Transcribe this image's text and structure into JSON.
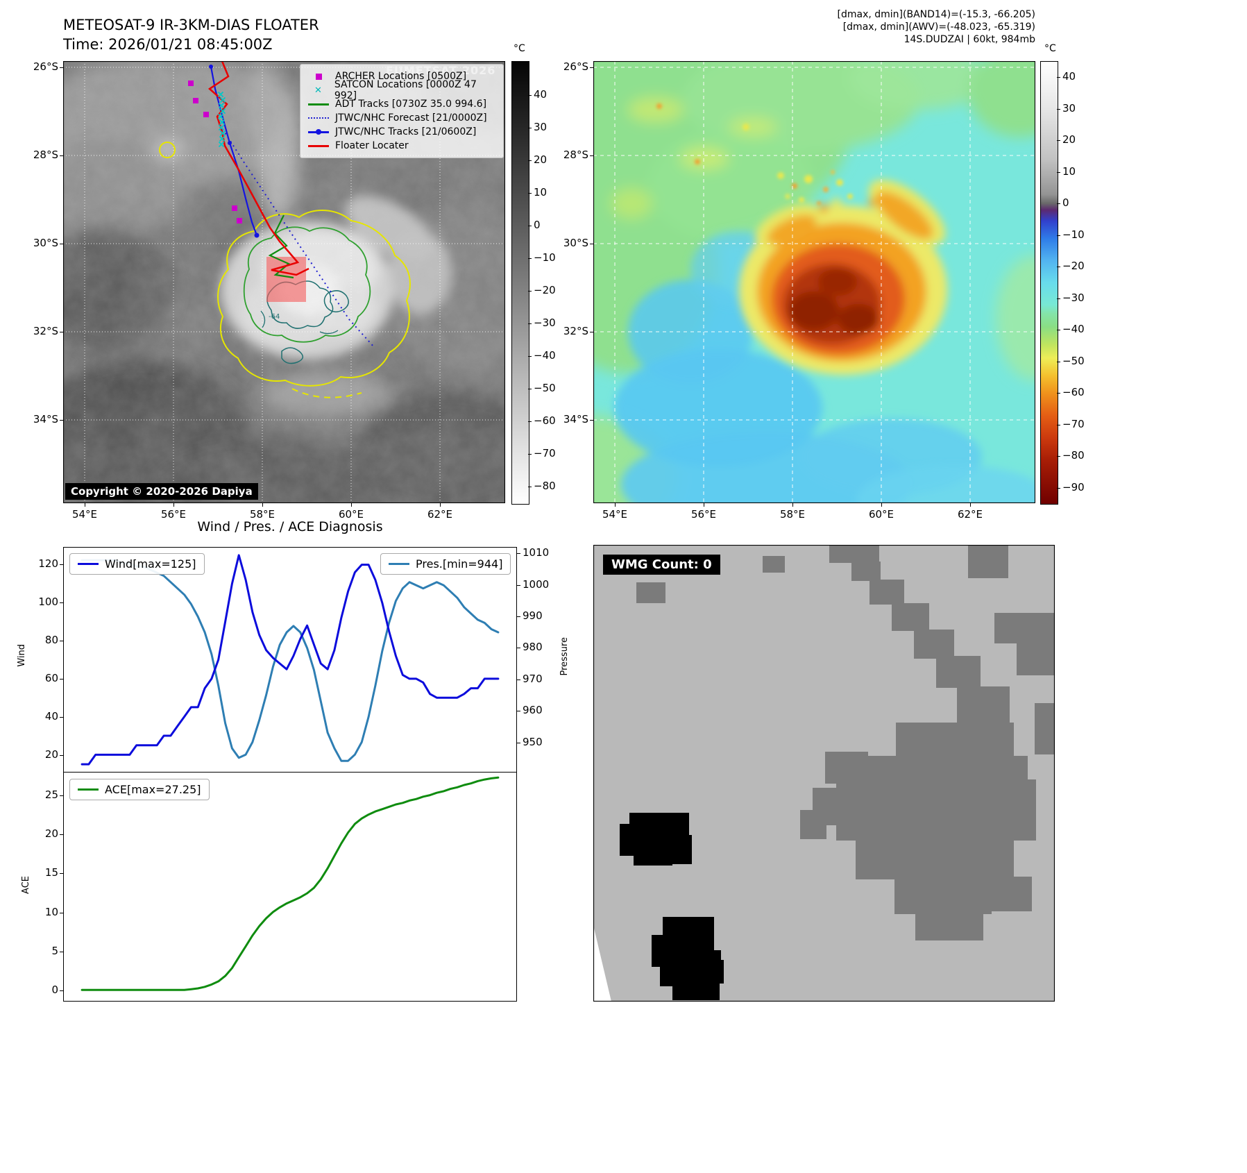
{
  "ir": {
    "title_line1": "METEOSAT-9 IR-3KM-DIAS FLOATER",
    "title_line2": "Time: 2026/01/21 08:45:00Z",
    "watermark": "EUMETSAT 2026",
    "copyright": "Copyright © 2020-2026 Dapiya",
    "contour_label": "-64",
    "legend": [
      {
        "label": "ARCHER Locations [0500Z]",
        "marker": "square",
        "color": "#cc00cc"
      },
      {
        "label": "SATCON Locations [0000Z 47 992]",
        "marker": "x",
        "color": "#00b8b8"
      },
      {
        "label": "ADT Tracks [0730Z 35.0 994.6]",
        "marker": "line",
        "color": "#0f8c0f"
      },
      {
        "label": "JTWC/NHC Forecast [21/0000Z]",
        "marker": "dotted",
        "color": "#2020d0"
      },
      {
        "label": "JTWC/NHC Tracks [21/0600Z]",
        "marker": "line-dot",
        "color": "#1414e0"
      },
      {
        "label": "Floater Locater",
        "marker": "line",
        "color": "#e80000"
      }
    ],
    "lat_ticks": [
      "26°S",
      "28°S",
      "30°S",
      "32°S",
      "34°S"
    ],
    "lon_ticks": [
      "54°E",
      "56°E",
      "58°E",
      "60°E",
      "62°E"
    ],
    "colorbar": {
      "unit": "°C",
      "ticks": [
        40,
        30,
        20,
        10,
        0,
        -10,
        -20,
        -30,
        -40,
        -50,
        -60,
        -70,
        -80
      ]
    }
  },
  "awv": {
    "header_line1": "[dmax, dmin](BAND14)=(-15.3, -66.205)",
    "header_line2": "[dmax, dmin](AWV)=(-48.023, -65.319)",
    "header_line3": "14S.DUDZAI | 60kt, 984mb",
    "lat_ticks": [
      "26°S",
      "28°S",
      "30°S",
      "32°S",
      "34°S"
    ],
    "lon_ticks": [
      "54°E",
      "56°E",
      "58°E",
      "60°E",
      "62°E"
    ],
    "colorbar": {
      "unit": "°C",
      "ticks": [
        40,
        30,
        20,
        10,
        0,
        -10,
        -20,
        -30,
        -40,
        -50,
        -60,
        -70,
        -80,
        -90
      ]
    }
  },
  "wmg": {
    "count_label": "WMG Count: 0"
  },
  "diagnosis": {
    "title": "Wind / Pres. / ACE Diagnosis"
  },
  "chart_data": [
    {
      "type": "line",
      "title": "Wind / Pres. / ACE Diagnosis",
      "x_axis": "time steps (no tick labels shown)",
      "series": [
        {
          "name": "Wind[max=125]",
          "yaxis": "left",
          "color": "#0c0cdc",
          "values": [
            15,
            15,
            20,
            20,
            20,
            20,
            20,
            20,
            25,
            25,
            25,
            25,
            30,
            30,
            35,
            40,
            45,
            45,
            55,
            60,
            70,
            90,
            110,
            125,
            112,
            95,
            83,
            75,
            71,
            68,
            65,
            72,
            81,
            88,
            78,
            68,
            65,
            75,
            92,
            106,
            116,
            120,
            120,
            112,
            100,
            85,
            72,
            62,
            60,
            60,
            58,
            52,
            50,
            50,
            50,
            50,
            52,
            55,
            55,
            60,
            60,
            60
          ]
        },
        {
          "name": "Pres.[min=944]",
          "yaxis": "right",
          "color": "#2e7eb3",
          "values": [
            1008,
            1008,
            1008,
            1008,
            1008,
            1008,
            1007,
            1007,
            1006,
            1006,
            1005,
            1004,
            1003,
            1001,
            999,
            997,
            994,
            990,
            985,
            978,
            968,
            956,
            948,
            945,
            946,
            950,
            957,
            965,
            974,
            981,
            985,
            987,
            985,
            980,
            973,
            963,
            953,
            948,
            944,
            944,
            946,
            950,
            958,
            968,
            979,
            988,
            995,
            999,
            1001,
            1000,
            999,
            1000,
            1001,
            1000,
            998,
            996,
            993,
            991,
            989,
            988,
            986,
            985
          ]
        }
      ],
      "ylabel_left": "Wind",
      "yticks_left": [
        20,
        40,
        60,
        80,
        100,
        120
      ],
      "ylim_left": [
        11,
        129
      ],
      "ylabel_right": "Pressure",
      "yticks_right": [
        950,
        960,
        970,
        980,
        990,
        1000,
        1010
      ],
      "ylim_right": [
        940.5,
        1012
      ],
      "grid": false,
      "legend_position": [
        "upper left",
        "upper right"
      ]
    },
    {
      "type": "line",
      "series": [
        {
          "name": "ACE[max=27.25]",
          "color": "#0f8c0f",
          "values": [
            0,
            0,
            0,
            0,
            0,
            0,
            0,
            0,
            0,
            0,
            0,
            0,
            0,
            0,
            0,
            0,
            0.1,
            0.2,
            0.4,
            0.7,
            1.1,
            1.8,
            2.8,
            4.2,
            5.6,
            7.0,
            8.2,
            9.2,
            10.0,
            10.6,
            11.1,
            11.5,
            11.9,
            12.4,
            13.1,
            14.2,
            15.6,
            17.2,
            18.8,
            20.2,
            21.3,
            22.0,
            22.5,
            22.9,
            23.2,
            23.5,
            23.8,
            24.0,
            24.3,
            24.5,
            24.8,
            25.0,
            25.3,
            25.5,
            25.8,
            26.0,
            26.3,
            26.5,
            26.8,
            27.0,
            27.15,
            27.25
          ]
        }
      ],
      "ylabel": "ACE",
      "yticks": [
        0,
        5,
        10,
        15,
        20,
        25
      ],
      "ylim": [
        -1.4,
        27.9
      ],
      "grid": false,
      "legend_position": "upper left"
    }
  ]
}
